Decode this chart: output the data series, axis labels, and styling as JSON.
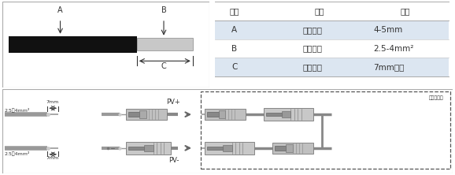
{
  "bg_color": "#ffffff",
  "table_header_bg": "#ffffff",
  "table_row_bg_odd": "#dce6f1",
  "table_row_bg_even": "#ffffff",
  "table_headers": [
    "名称",
    "说明",
    "数值"
  ],
  "table_rows": [
    [
      "A",
      "导线外径",
      "4-5mm"
    ],
    [
      "B",
      "导线内径",
      "2.5-4mm²"
    ],
    [
      "C",
      "剖线长度",
      "7mm左右"
    ]
  ],
  "wire_label_top": "2.5～4mm²",
  "wire_label_bottom": "2.5～4mm²",
  "dim_label": "7mm",
  "dim_label2": "7mm",
  "pv_plus": "PV+",
  "pv_minus": "PV-",
  "inverter_label": "逆变器内部",
  "cable_A": "A",
  "cable_B": "B",
  "cable_C": "C",
  "wire_black_color": "#111111",
  "wire_gray_color": "#b8b8b8",
  "text_color": "#333333",
  "border_color": "#aaaaaa",
  "arrow_color": "#333333"
}
